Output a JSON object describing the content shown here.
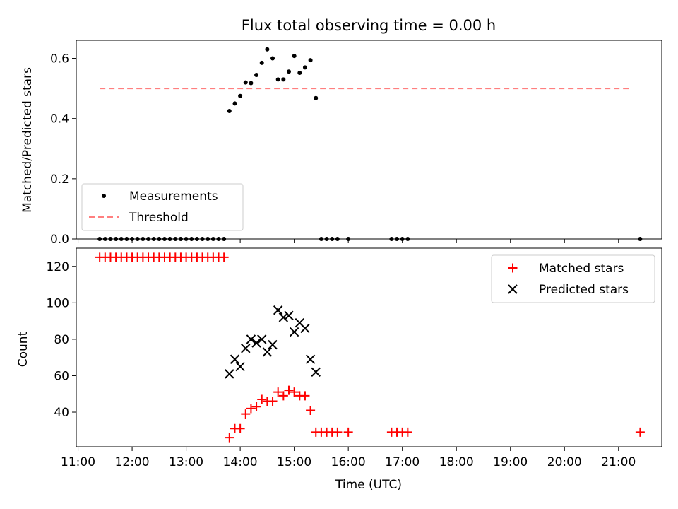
{
  "chart_data": [
    {
      "type": "scatter",
      "title": "Flux total observing time = 0.00 h",
      "xlabel": "",
      "ylabel": "Matched/Predicted stars",
      "ylim": [
        0,
        0.66
      ],
      "yticks": [
        0.0,
        0.2,
        0.4,
        0.6
      ],
      "ytick_labels": [
        "0.0",
        "0.2",
        "0.4",
        "0.6"
      ],
      "xlim": [
        "10:58",
        "21:48"
      ],
      "grid": false,
      "legend_placement": "lower-left",
      "series": [
        {
          "name": "Measurements",
          "kind": "scatter",
          "marker": "dot",
          "color": "#000000",
          "x": [
            "11:24",
            "11:30",
            "11:36",
            "11:42",
            "11:48",
            "11:54",
            "12:00",
            "12:06",
            "12:12",
            "12:18",
            "12:24",
            "12:30",
            "12:36",
            "12:42",
            "12:48",
            "12:54",
            "13:00",
            "13:06",
            "13:12",
            "13:18",
            "13:24",
            "13:30",
            "13:36",
            "13:42",
            "13:48",
            "13:54",
            "14:00",
            "14:06",
            "14:12",
            "14:18",
            "14:24",
            "14:30",
            "14:36",
            "14:42",
            "14:48",
            "14:54",
            "15:00",
            "15:06",
            "15:12",
            "15:18",
            "15:24",
            "15:30",
            "15:36",
            "15:42",
            "15:48",
            "16:00",
            "16:48",
            "16:54",
            "17:00",
            "17:06",
            "21:24"
          ],
          "y": [
            0,
            0,
            0,
            0,
            0,
            0,
            0,
            0,
            0,
            0,
            0,
            0,
            0,
            0,
            0,
            0,
            0,
            0,
            0,
            0,
            0,
            0,
            0,
            0,
            0.425,
            0.45,
            0.475,
            0.52,
            0.518,
            0.545,
            0.585,
            0.63,
            0.6,
            0.53,
            0.53,
            0.556,
            0.608,
            0.552,
            0.57,
            0.594,
            0.468,
            0,
            0,
            0,
            0,
            0,
            0,
            0,
            0,
            0,
            0
          ]
        },
        {
          "name": "Threshold",
          "kind": "line",
          "style": "dashed",
          "color": "#ff7f7f",
          "x": [
            "11:24",
            "21:12"
          ],
          "y": [
            0.5,
            0.5
          ]
        }
      ]
    },
    {
      "type": "scatter",
      "title": "",
      "xlabel": "Time (UTC)",
      "ylabel": "Count",
      "ylim": [
        21,
        130
      ],
      "yticks": [
        40,
        60,
        80,
        100,
        120
      ],
      "ytick_labels": [
        "40",
        "60",
        "80",
        "100",
        "120"
      ],
      "xlim": [
        "10:58",
        "21:48"
      ],
      "xticks": [
        "11:00",
        "12:00",
        "13:00",
        "14:00",
        "15:00",
        "16:00",
        "17:00",
        "18:00",
        "19:00",
        "20:00",
        "21:00"
      ],
      "xtick_labels": [
        "11:00",
        "12:00",
        "13:00",
        "14:00",
        "15:00",
        "16:00",
        "17:00",
        "18:00",
        "19:00",
        "20:00",
        "21:00"
      ],
      "grid": false,
      "legend_placement": "upper-right",
      "series": [
        {
          "name": "Matched stars",
          "kind": "scatter",
          "marker": "plus",
          "color": "#ff0000",
          "x": [
            "11:24",
            "11:30",
            "11:36",
            "11:42",
            "11:48",
            "11:54",
            "12:00",
            "12:06",
            "12:12",
            "12:18",
            "12:24",
            "12:30",
            "12:36",
            "12:42",
            "12:48",
            "12:54",
            "13:00",
            "13:06",
            "13:12",
            "13:18",
            "13:24",
            "13:30",
            "13:36",
            "13:42",
            "13:48",
            "13:54",
            "14:00",
            "14:06",
            "14:12",
            "14:18",
            "14:24",
            "14:30",
            "14:36",
            "14:42",
            "14:48",
            "14:54",
            "15:00",
            "15:06",
            "15:12",
            "15:18",
            "15:24",
            "15:30",
            "15:36",
            "15:42",
            "15:48",
            "16:00",
            "16:48",
            "16:54",
            "17:00",
            "17:06",
            "21:24"
          ],
          "y": [
            125,
            125,
            125,
            125,
            125,
            125,
            125,
            125,
            125,
            125,
            125,
            125,
            125,
            125,
            125,
            125,
            125,
            125,
            125,
            125,
            125,
            125,
            125,
            125,
            26,
            31,
            31,
            39,
            42,
            43,
            47,
            46,
            46,
            51,
            49,
            52,
            51,
            49,
            49,
            41,
            29,
            29,
            29,
            29,
            29,
            29,
            29,
            29,
            29,
            29,
            29
          ]
        },
        {
          "name": "Predicted stars",
          "kind": "scatter",
          "marker": "x",
          "color": "#000000",
          "x": [
            "13:48",
            "13:54",
            "14:00",
            "14:06",
            "14:12",
            "14:18",
            "14:24",
            "14:30",
            "14:36",
            "14:42",
            "14:48",
            "14:54",
            "15:00",
            "15:06",
            "15:12",
            "15:18",
            "15:24"
          ],
          "y": [
            61,
            69,
            65,
            75,
            80,
            78,
            80,
            73,
            77,
            96,
            92,
            93,
            84,
            89,
            86,
            69,
            62
          ]
        }
      ]
    }
  ]
}
